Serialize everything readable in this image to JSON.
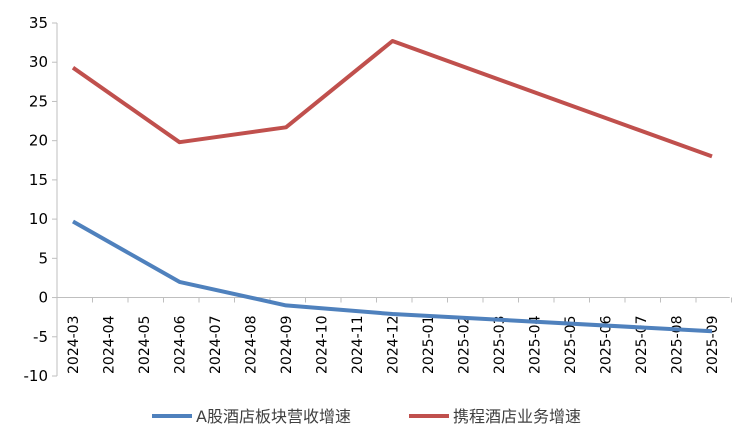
{
  "chart_data": {
    "type": "line",
    "x": [
      "2024-03",
      "2024-04",
      "2024-05",
      "2024-06",
      "2024-07",
      "2024-08",
      "2024-09",
      "2024-10",
      "2024-11",
      "2024-12",
      "2025-01",
      "2025-02",
      "2025-03",
      "2025-04",
      "2025-05",
      "2025-06",
      "2025-07",
      "2025-08",
      "2025-09"
    ],
    "series": [
      {
        "name": "A股酒店板块营收增速",
        "color": "#4f81bd",
        "points": [
          [
            "2024-03",
            9.7
          ],
          [
            "2024-06",
            2.0
          ],
          [
            "2024-09",
            -1.0
          ],
          [
            "2024-12",
            -2.1
          ],
          [
            "2025-09",
            -4.3
          ]
        ]
      },
      {
        "name": "携程酒店业务增速",
        "color": "#c0504d",
        "points": [
          [
            "2024-03",
            29.3
          ],
          [
            "2024-06",
            19.8
          ],
          [
            "2024-09",
            21.7
          ],
          [
            "2024-12",
            32.7
          ],
          [
            "2025-09",
            18.0
          ]
        ]
      }
    ],
    "yticks": [
      35,
      30,
      25,
      20,
      15,
      10,
      5,
      0,
      -5,
      -10
    ],
    "ylim": [
      -10,
      35
    ],
    "grid": false,
    "legend_position": "bottom"
  }
}
